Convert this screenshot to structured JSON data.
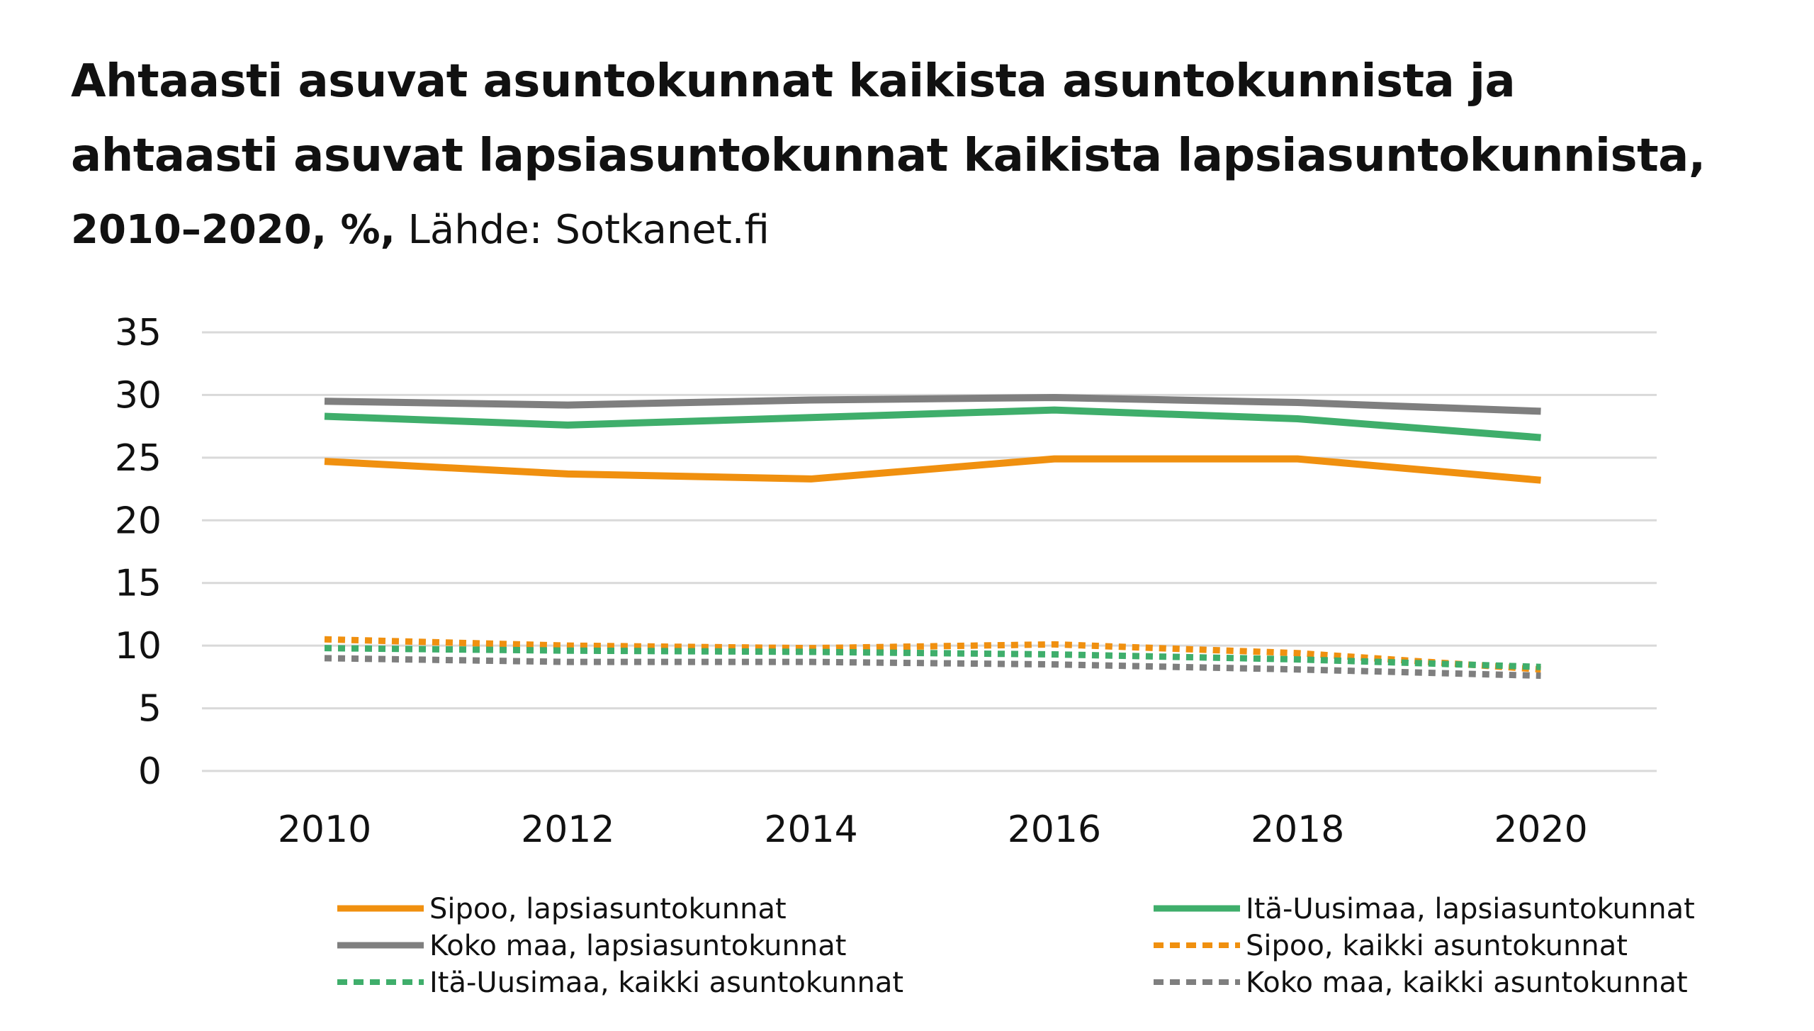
{
  "chart_data": {
    "type": "line",
    "title_line1": "Ahtaasti asuvat asuntokunnat kaikista asuntokunnista ja",
    "title_line2": "ahtaasti asuvat lapsiasuntokunnat kaikista lapsiasuntokunnista,",
    "subtitle_bold": "2010–2020, %,",
    "subtitle_source": " Lähde: Sotkanet.fi",
    "xlabel": "",
    "ylabel": "",
    "x": [
      2010,
      2012,
      2014,
      2016,
      2018,
      2020
    ],
    "x_tick_labels": [
      "2010",
      "2012",
      "2014",
      "2016",
      "2018",
      "2020"
    ],
    "ylim": [
      0,
      35
    ],
    "y_ticks": [
      0,
      5,
      10,
      15,
      20,
      25,
      30,
      35
    ],
    "y_tick_labels": [
      "0",
      "5",
      "10",
      "15",
      "20",
      "25",
      "30",
      "35"
    ],
    "grid": true,
    "legend_position": "bottom",
    "series": [
      {
        "name": "Sipoo, lapsiasuntokunnat",
        "color": "#f0900f",
        "dash": false,
        "values": [
          24.7,
          23.7,
          23.3,
          24.9,
          24.9,
          23.2
        ]
      },
      {
        "name": "Itä-Uusimaa, lapsiasuntokunnat",
        "color": "#3fae6b",
        "dash": false,
        "values": [
          28.3,
          27.6,
          28.2,
          28.8,
          28.1,
          26.6
        ]
      },
      {
        "name": "Koko maa, lapsiasuntokunnat",
        "color": "#7f7f7f",
        "dash": false,
        "values": [
          29.5,
          29.2,
          29.6,
          29.8,
          29.4,
          28.7
        ]
      },
      {
        "name": "Sipoo, kaikki asuntokunnat",
        "color": "#f0900f",
        "dash": true,
        "values": [
          10.5,
          10.0,
          9.8,
          10.1,
          9.4,
          8.1
        ]
      },
      {
        "name": "Itä-Uusimaa, kaikki asuntokunnat",
        "color": "#3fae6b",
        "dash": true,
        "values": [
          9.8,
          9.6,
          9.5,
          9.3,
          8.9,
          8.3
        ]
      },
      {
        "name": "Koko maa, kaikki asuntokunnat",
        "color": "#7f7f7f",
        "dash": true,
        "values": [
          9.0,
          8.7,
          8.7,
          8.5,
          8.1,
          7.6
        ]
      }
    ]
  }
}
